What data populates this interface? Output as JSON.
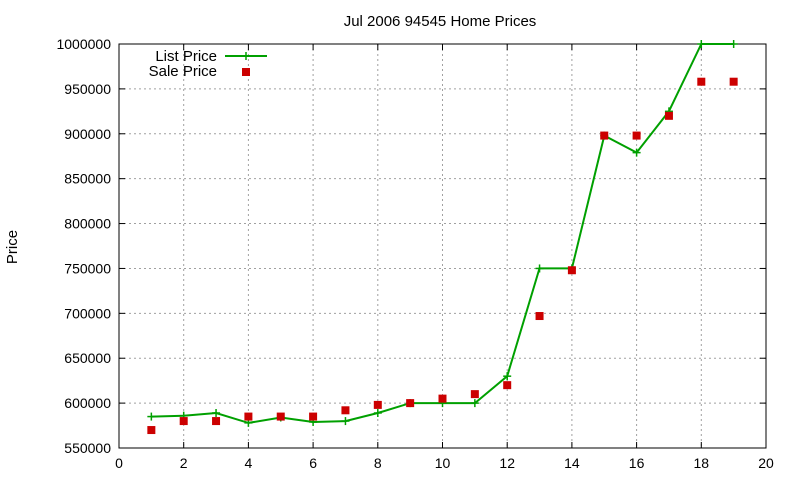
{
  "chart_data": {
    "type": "line",
    "title": "Jul 2006 94545 Home Prices",
    "xlabel": "",
    "ylabel": "Price",
    "xlim": [
      0,
      20
    ],
    "ylim": [
      550000,
      1000000
    ],
    "xticks": [
      0,
      2,
      4,
      6,
      8,
      10,
      12,
      14,
      16,
      18,
      20
    ],
    "yticks": [
      550000,
      600000,
      650000,
      700000,
      750000,
      800000,
      850000,
      900000,
      950000,
      1000000
    ],
    "grid": true,
    "legend_position": "top-left",
    "series": [
      {
        "name": "List Price",
        "style": "line with plus markers",
        "color": "#00a000",
        "x": [
          1,
          2,
          3,
          4,
          5,
          6,
          7,
          8,
          9,
          10,
          11,
          12,
          13,
          14,
          15,
          16,
          17,
          18,
          19
        ],
        "y": [
          585000,
          586000,
          589000,
          578000,
          584000,
          579000,
          580000,
          589000,
          600000,
          600000,
          600000,
          630000,
          750000,
          750000,
          898000,
          879000,
          925000,
          1000000,
          1000000
        ]
      },
      {
        "name": "Sale Price",
        "style": "square markers",
        "color": "#cc0000",
        "x": [
          1,
          2,
          3,
          4,
          5,
          6,
          7,
          8,
          9,
          10,
          11,
          12,
          13,
          14,
          15,
          16,
          17,
          18,
          19
        ],
        "y": [
          570000,
          580000,
          580000,
          585000,
          585000,
          585000,
          592000,
          598000,
          600000,
          605000,
          610000,
          620000,
          697000,
          748000,
          898000,
          898000,
          920000,
          958000,
          958000
        ]
      }
    ]
  }
}
